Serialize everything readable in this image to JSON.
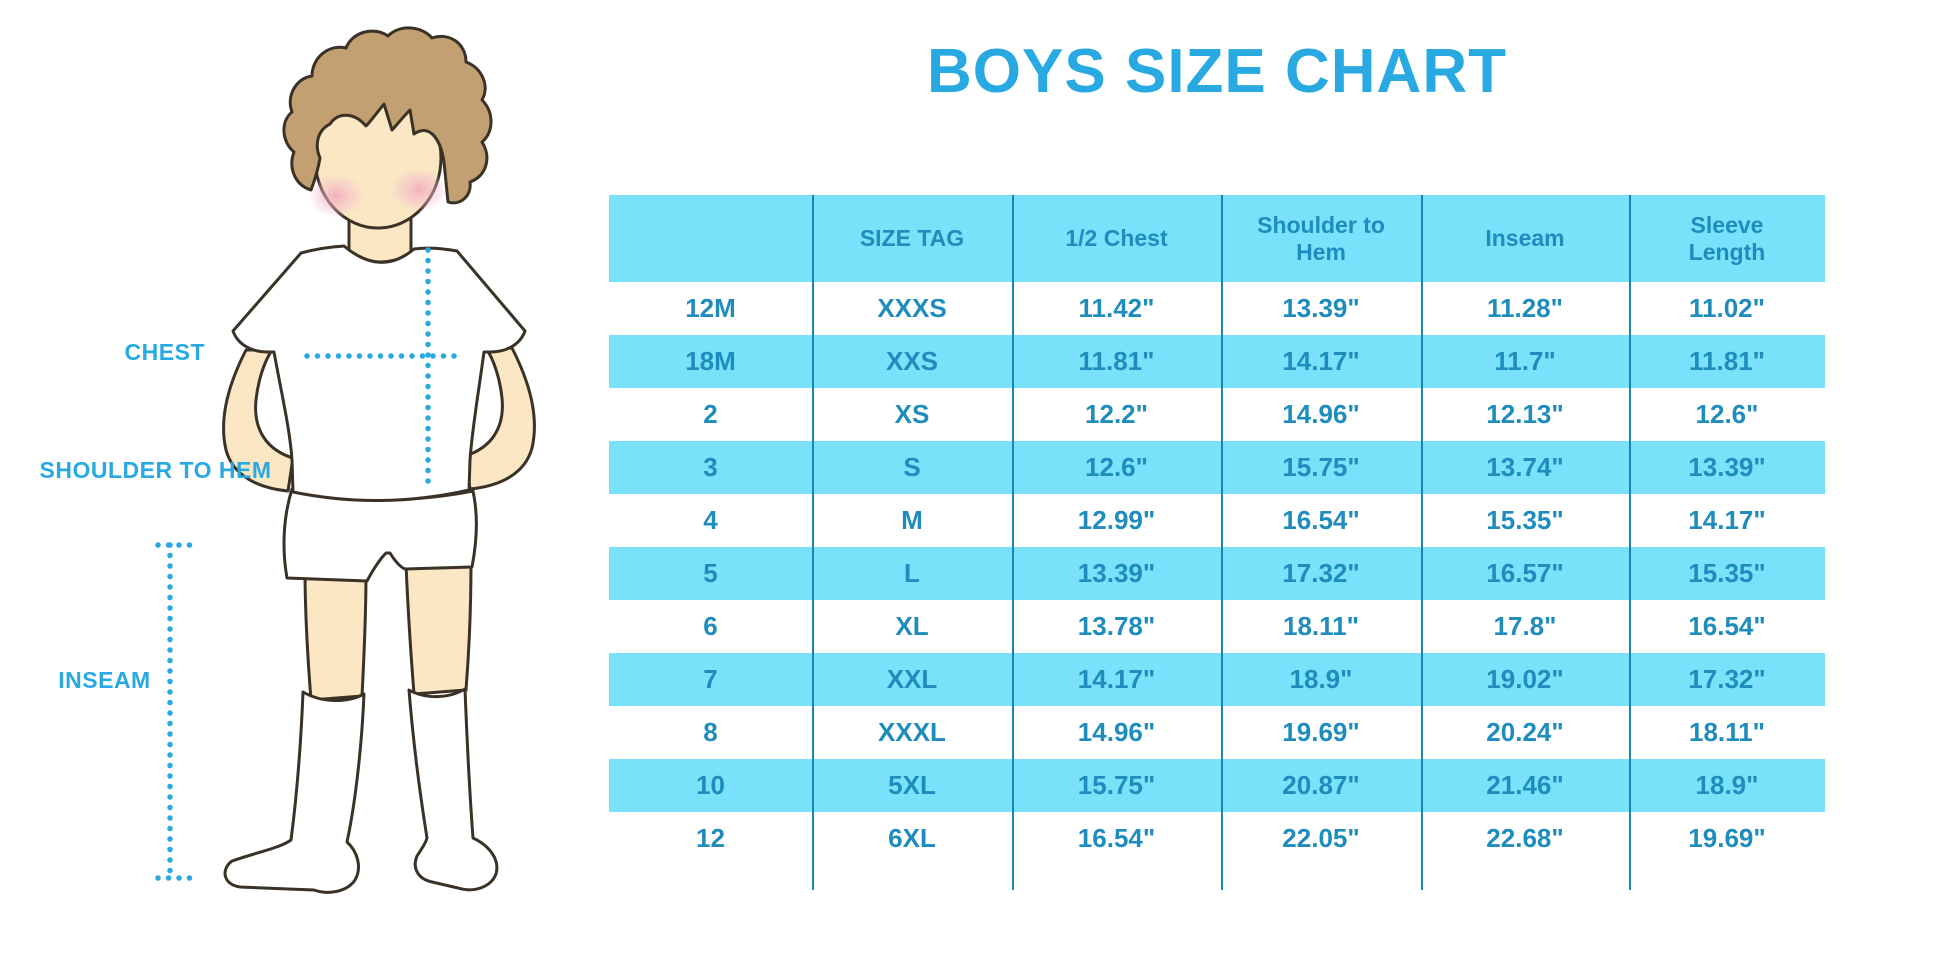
{
  "title": "BOYS SIZE CHART",
  "colors": {
    "accent_blue": "#29A9E1",
    "table_text_blue": "#1E8CBC",
    "stripe_cyan": "#79E1FA",
    "divider_blue": "#1B84B6",
    "hair_brown": "#C2A072",
    "skin_tone": "#FBE7C4"
  },
  "figure_labels": {
    "chest": "CHEST",
    "shoulder_to_hem": "SHOULDER TO HEM",
    "inseam": "INSEAM"
  },
  "chart_data": {
    "type": "table",
    "title": "BOYS SIZE CHART",
    "columns": [
      "",
      "SIZE TAG",
      "1/2 Chest",
      "Shoulder to Hem",
      "Inseam",
      "Sleeve Length"
    ],
    "rows": [
      [
        "12M",
        "XXXS",
        "11.42\"",
        "13.39\"",
        "11.28\"",
        "11.02\""
      ],
      [
        "18M",
        "XXS",
        "11.81\"",
        "14.17\"",
        "11.7\"",
        "11.81\""
      ],
      [
        "2",
        "XS",
        "12.2\"",
        "14.96\"",
        "12.13\"",
        "12.6\""
      ],
      [
        "3",
        "S",
        "12.6\"",
        "15.75\"",
        "13.74\"",
        "13.39\""
      ],
      [
        "4",
        "M",
        "12.99\"",
        "16.54\"",
        "15.35\"",
        "14.17\""
      ],
      [
        "5",
        "L",
        "13.39\"",
        "17.32\"",
        "16.57\"",
        "15.35\""
      ],
      [
        "6",
        "XL",
        "13.78\"",
        "18.11\"",
        "17.8\"",
        "16.54\""
      ],
      [
        "7",
        "XXL",
        "14.17\"",
        "18.9\"",
        "19.02\"",
        "17.32\""
      ],
      [
        "8",
        "XXXL",
        "14.96\"",
        "19.69\"",
        "20.24\"",
        "18.11\""
      ],
      [
        "10",
        "5XL",
        "15.75\"",
        "20.87\"",
        "21.46\"",
        "18.9\""
      ],
      [
        "12",
        "6XL",
        "16.54\"",
        "22.05\"",
        "22.68\"",
        "19.69\""
      ]
    ],
    "units": "inches",
    "layout_hints": "cyan header band, rows alternate white/cyan, vertical divider lines between columns extending below last row"
  }
}
